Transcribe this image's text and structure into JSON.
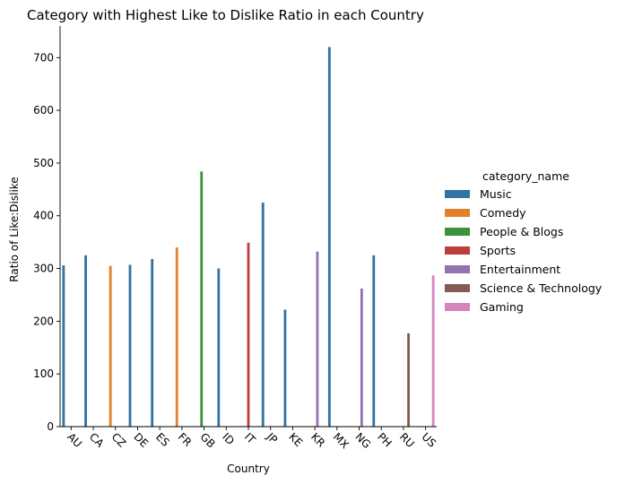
{
  "chart_data": {
    "type": "bar",
    "title": "Category with Highest Like to Dislike Ratio in each Country",
    "xlabel": "Country",
    "ylabel": "Ratio of Like:Dislike",
    "ylim": [
      0,
      760
    ],
    "yticks": [
      0,
      100,
      200,
      300,
      400,
      500,
      600,
      700
    ],
    "grid": false,
    "legend": {
      "title": "category_name",
      "placement": "right"
    },
    "categories": [
      "AU",
      "CA",
      "CZ",
      "DE",
      "ES",
      "FR",
      "GB",
      "ID",
      "IT",
      "JP",
      "KE",
      "KR",
      "MX",
      "NG",
      "PH",
      "RU",
      "US"
    ],
    "series": [
      {
        "name": "Music",
        "color": "#3274a1",
        "values": [
          306,
          325,
          null,
          307,
          318,
          null,
          null,
          300,
          null,
          425,
          222,
          null,
          720,
          null,
          325,
          null,
          null
        ]
      },
      {
        "name": "Comedy",
        "color": "#e1812c",
        "values": [
          null,
          null,
          305,
          null,
          null,
          340,
          null,
          null,
          null,
          null,
          null,
          null,
          null,
          null,
          null,
          null,
          null
        ]
      },
      {
        "name": "People & Blogs",
        "color": "#3a923a",
        "values": [
          null,
          null,
          null,
          null,
          null,
          null,
          484,
          null,
          null,
          null,
          null,
          null,
          null,
          null,
          null,
          null,
          null
        ]
      },
      {
        "name": "Sports",
        "color": "#c03d3e",
        "values": [
          null,
          null,
          null,
          null,
          null,
          null,
          null,
          null,
          349,
          null,
          null,
          null,
          null,
          null,
          null,
          null,
          null
        ]
      },
      {
        "name": "Entertainment",
        "color": "#9372b2",
        "values": [
          null,
          null,
          null,
          null,
          null,
          null,
          null,
          null,
          null,
          null,
          null,
          332,
          null,
          262,
          null,
          null,
          null
        ]
      },
      {
        "name": "Science & Technology",
        "color": "#845b53",
        "values": [
          null,
          null,
          null,
          null,
          null,
          null,
          null,
          null,
          null,
          null,
          null,
          null,
          null,
          null,
          null,
          177,
          null
        ]
      },
      {
        "name": "Gaming",
        "color": "#d684bd",
        "values": [
          null,
          null,
          null,
          null,
          null,
          null,
          null,
          null,
          null,
          null,
          null,
          null,
          null,
          null,
          null,
          null,
          287
        ]
      }
    ]
  }
}
